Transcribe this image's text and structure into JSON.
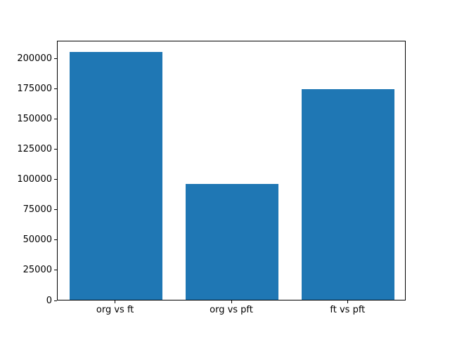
{
  "figure": {
    "background": "#ffffff",
    "frame_color": "#000000",
    "text_color": "#000000"
  },
  "chart_data": {
    "type": "bar",
    "title": "",
    "xlabel": "",
    "ylabel": "",
    "categories": [
      "org vs ft",
      "org vs pft",
      "ft vs pft"
    ],
    "values": [
      205000,
      95800,
      173800
    ],
    "yticks": [
      0,
      25000,
      50000,
      75000,
      100000,
      125000,
      150000,
      175000,
      200000
    ],
    "ylim": [
      0,
      214600
    ],
    "bar_color": "#1f77b4",
    "bar_width_fraction": 0.8,
    "grid": false,
    "legend": null
  }
}
